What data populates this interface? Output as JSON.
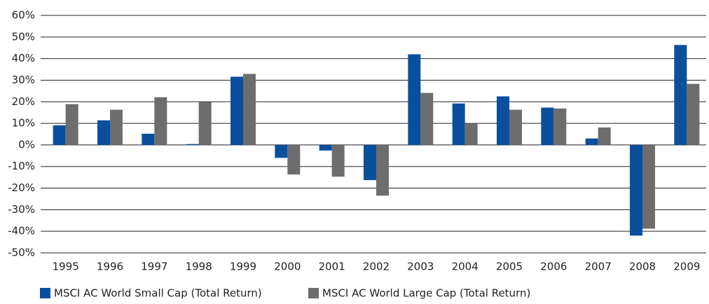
{
  "chart_data": {
    "type": "bar",
    "categories": [
      "1995",
      "1996",
      "1997",
      "1998",
      "1999",
      "2000",
      "2001",
      "2002",
      "2003",
      "2004",
      "2005",
      "2006",
      "2007",
      "2008",
      "2009"
    ],
    "series": [
      {
        "name": "MSCI AC World Small Cap (Total Return)",
        "color": "#0a4f9e",
        "values": [
          9.1,
          11.4,
          5.2,
          0.4,
          31.6,
          -6,
          -2.6,
          -16.3,
          42,
          19.2,
          22.5,
          17.3,
          3,
          -42,
          46.3
        ]
      },
      {
        "name": "MSCI AC World Large Cap (Total Return)",
        "color": "#6d6d6d",
        "values": [
          18.9,
          16.3,
          22.1,
          19.9,
          32.9,
          -13.7,
          -14.7,
          -23.5,
          24.1,
          9.8,
          16.3,
          16.9,
          8.1,
          -38.8,
          28.3
        ]
      }
    ],
    "ylim": [
      -50,
      60
    ],
    "yticks": [
      {
        "value": -50,
        "label": "-50%"
      },
      {
        "value": -40,
        "label": "-40%"
      },
      {
        "value": -30,
        "label": "-30%"
      },
      {
        "value": -20,
        "label": "-20%"
      },
      {
        "value": -10,
        "label": "-10%"
      },
      {
        "value": 0,
        "label": "0%"
      },
      {
        "value": 10,
        "label": "10%"
      },
      {
        "value": 20,
        "label": "20%"
      },
      {
        "value": 30,
        "label": "30%"
      },
      {
        "value": 40,
        "label": "40%"
      },
      {
        "value": 50,
        "label": "50%"
      },
      {
        "value": 60,
        "label": "60%"
      }
    ],
    "grid": true,
    "legend": "bottom"
  }
}
